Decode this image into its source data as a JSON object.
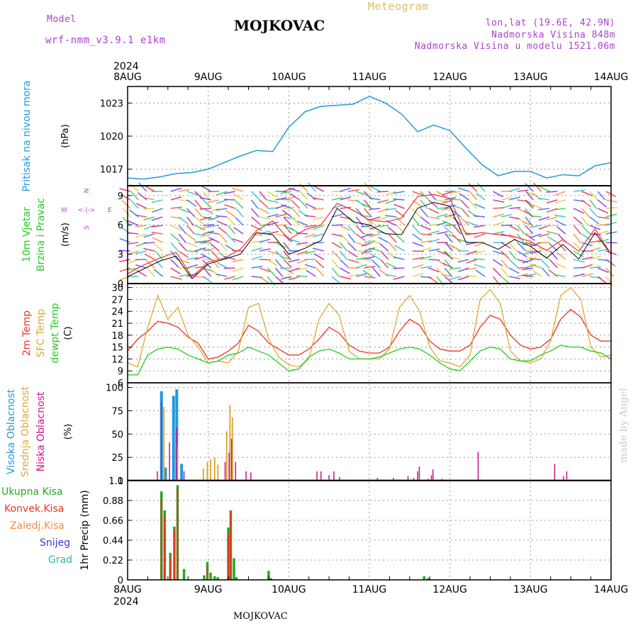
{
  "header": {
    "model_label": "Model",
    "model_name": "wrf-nmm_v3.9.1 e1km",
    "title": "MOJKOVAC",
    "subtitle": "Meteogram",
    "lonlat": "lon,lat (19.6E, 42.9N)",
    "elevation": "Nadmorska Visina 848m",
    "model_elevation": "Nadmorska Visina u modelu 1521.06m",
    "year_top": "2024",
    "year_bottom": "2024",
    "footer": "MOJKOVAC",
    "credit": "made by Angel"
  },
  "colors": {
    "pressure": "#1e9be0",
    "wind_label": "#22cc22",
    "temp_2m": "#ee3322",
    "temp_sfc": "#ddaa33",
    "temp_dew": "#22cc22",
    "cloud_high": "#1e9be0",
    "cloud_mid": "#ddaa33",
    "cloud_low": "#cc1188",
    "precip_total": "#22aa22",
    "precip_conv": "#ee3322",
    "precip_frz": "#ff8833",
    "precip_snow": "#4433cc",
    "precip_graupel": "#22bbaa",
    "compass": "#aa44cc",
    "credit": "#cccccc"
  },
  "chart_data": [
    {
      "type": "line",
      "id": "pressure",
      "ylabel": "Pritisak na nivou mora",
      "unit": "(hPa)",
      "ylim": [
        1015.5,
        1024.5
      ],
      "yticks": [
        1017,
        1020,
        1023
      ],
      "x_days": [
        "8AUG",
        "9AUG",
        "10AUG",
        "11AUG",
        "12AUG",
        "13AUG",
        "14AUG"
      ],
      "series": [
        {
          "x": [
            0,
            0.2,
            0.4,
            0.6,
            0.8,
            1.0,
            1.2,
            1.4,
            1.6,
            1.8,
            2.0,
            2.2,
            2.4,
            2.6,
            2.8,
            3.0,
            3.2,
            3.4,
            3.6,
            3.8,
            4.0,
            4.2,
            4.4,
            4.6,
            4.8,
            5.0,
            5.2,
            5.4,
            5.6,
            5.8,
            6.0
          ],
          "y": [
            1016.2,
            1016.1,
            1016.3,
            1016.6,
            1016.7,
            1017.0,
            1017.6,
            1018.2,
            1018.7,
            1018.6,
            1020.8,
            1022.2,
            1022.7,
            1022.8,
            1022.9,
            1023.6,
            1023.0,
            1022.0,
            1020.4,
            1021.0,
            1020.5,
            1018.9,
            1017.4,
            1016.4,
            1016.8,
            1016.8,
            1016.2,
            1016.5,
            1016.4,
            1017.3,
            1017.6
          ]
        }
      ]
    },
    {
      "type": "line",
      "id": "wind",
      "ylabel": [
        "10m Vjetar",
        "Brzina i Pravac"
      ],
      "unit": "(m/s)",
      "ylim": [
        0,
        10
      ],
      "yticks": [
        0,
        3,
        6,
        9
      ],
      "compass": {
        "n": "N",
        "s": "S",
        "w": "W",
        "e": "E",
        "arrows": "<-|->"
      },
      "series": [
        {
          "name": "",
          "x": [
            0,
            0.2,
            0.4,
            0.6,
            0.8,
            1.0,
            1.2,
            1.4,
            1.6,
            1.8,
            2.0,
            2.2,
            2.4,
            2.6,
            2.8,
            3.0,
            3.2,
            3.4,
            3.6,
            3.8,
            4.0,
            4.2,
            4.4,
            4.6,
            4.8,
            5.0,
            5.2,
            5.4,
            5.6,
            5.8,
            6.0
          ],
          "y": [
            0.7,
            1.5,
            2.3,
            2.8,
            0.5,
            2.0,
            2.5,
            3.0,
            5.2,
            5.0,
            3.0,
            3.6,
            4.4,
            7.7,
            6.3,
            6.0,
            5.1,
            5.0,
            7.7,
            8.3,
            7.9,
            4.2,
            4.2,
            3.5,
            4.5,
            3.8,
            2.6,
            4.0,
            2.5,
            5.2,
            3.0
          ]
        },
        {
          "name": "",
          "x": [
            0,
            0.2,
            0.4,
            0.6,
            0.8,
            1.0,
            1.2,
            1.4,
            1.6,
            1.8,
            2.0,
            2.2,
            2.4,
            2.6,
            2.8,
            3.0,
            3.2,
            3.4,
            3.6,
            3.8,
            4.0,
            4.2,
            4.4,
            4.6,
            4.8,
            5.0,
            5.2,
            5.4,
            5.6,
            5.8,
            6.0
          ],
          "y": [
            1.0,
            1.9,
            2.6,
            3.2,
            0.7,
            2.2,
            2.6,
            3.5,
            5.4,
            6.4,
            4.5,
            5.5,
            6.0,
            8.2,
            7.5,
            6.5,
            6.3,
            6.7,
            8.9,
            9.1,
            8.7,
            5.0,
            5.2,
            5.0,
            4.8,
            4.3,
            3.4,
            4.5,
            3.3,
            5.6,
            3.0
          ]
        }
      ]
    },
    {
      "type": "line",
      "id": "temperature",
      "ylabel": [
        "2m Temp",
        "SFC Temp",
        "dewpt Temp"
      ],
      "unit": "(C)",
      "ylim": [
        6,
        31
      ],
      "yticks": [
        6,
        9,
        12,
        15,
        18,
        21,
        24,
        27,
        30
      ],
      "series": [
        {
          "name": "2m Temp",
          "x": [
            0,
            0.125,
            0.25,
            0.375,
            0.5,
            0.625,
            0.75,
            0.875,
            1.0,
            1.125,
            1.25,
            1.375,
            1.5,
            1.625,
            1.75,
            1.875,
            2.0,
            2.125,
            2.25,
            2.375,
            2.5,
            2.625,
            2.75,
            2.875,
            3.0,
            3.125,
            3.25,
            3.375,
            3.5,
            3.625,
            3.75,
            3.875,
            4.0,
            4.125,
            4.25,
            4.375,
            4.5,
            4.625,
            4.75,
            4.875,
            5.0,
            5.125,
            5.25,
            5.375,
            5.5,
            5.625,
            5.75,
            5.875,
            6.0
          ],
          "y": [
            14,
            17,
            19,
            21.5,
            21,
            20,
            17.5,
            16,
            12,
            12.5,
            14,
            16,
            20.5,
            19,
            16,
            14.5,
            13,
            13,
            14.5,
            17,
            20,
            18.5,
            15.5,
            14,
            13.5,
            13.5,
            15,
            19,
            22,
            20.5,
            16.5,
            14.5,
            14,
            14,
            15.5,
            20,
            23,
            22,
            18,
            15.5,
            14.5,
            15,
            17,
            22,
            24.5,
            22.5,
            18,
            16.5,
            16.5
          ]
        },
        {
          "name": "SFC Temp",
          "x": [
            0,
            0.125,
            0.25,
            0.375,
            0.5,
            0.625,
            0.75,
            0.875,
            1.0,
            1.125,
            1.25,
            1.375,
            1.5,
            1.625,
            1.75,
            1.875,
            2.0,
            2.125,
            2.25,
            2.375,
            2.5,
            2.625,
            2.75,
            2.875,
            3.0,
            3.125,
            3.25,
            3.375,
            3.5,
            3.625,
            3.75,
            3.875,
            4.0,
            4.125,
            4.25,
            4.375,
            4.5,
            4.625,
            4.75,
            4.875,
            5.0,
            5.125,
            5.25,
            5.375,
            5.5,
            5.625,
            5.75,
            5.875,
            6.0
          ],
          "y": [
            11,
            10,
            20,
            28,
            22,
            25,
            18,
            15,
            11,
            11.5,
            11,
            14,
            25,
            26,
            17,
            12.5,
            10.5,
            10,
            12,
            22,
            26,
            23,
            14,
            12,
            12,
            12,
            14.5,
            25,
            28,
            24,
            15,
            11.5,
            11,
            10,
            13,
            27,
            29.5,
            26,
            14,
            11.5,
            11,
            12,
            16.5,
            28,
            30,
            27,
            15,
            12.5,
            13
          ]
        },
        {
          "name": "dewpt Temp",
          "x": [
            0,
            0.125,
            0.25,
            0.375,
            0.5,
            0.625,
            0.75,
            0.875,
            1.0,
            1.125,
            1.25,
            1.375,
            1.5,
            1.625,
            1.75,
            1.875,
            2.0,
            2.125,
            2.25,
            2.375,
            2.5,
            2.625,
            2.75,
            2.875,
            3.0,
            3.125,
            3.25,
            3.375,
            3.5,
            3.625,
            3.75,
            3.875,
            4.0,
            4.125,
            4.25,
            4.375,
            4.5,
            4.625,
            4.75,
            4.875,
            5.0,
            5.125,
            5.25,
            5.375,
            5.5,
            5.625,
            5.75,
            5.875,
            6.0
          ],
          "y": [
            8,
            8,
            13,
            14.5,
            15,
            14.5,
            13,
            12,
            11,
            11.5,
            13,
            13.5,
            15,
            14,
            13,
            11,
            9,
            9.5,
            12.5,
            14,
            14.5,
            13.5,
            12,
            12,
            12,
            12.5,
            13.5,
            14.5,
            15,
            14.5,
            13,
            11,
            9.5,
            9,
            11.5,
            14,
            15,
            14.5,
            12,
            11.5,
            11.5,
            13,
            14,
            15.5,
            15,
            15,
            14,
            13.5,
            12
          ]
        }
      ]
    },
    {
      "type": "bar",
      "id": "clouds",
      "ylabel": [
        "Visoka Oblacnost",
        "Srednja Oblacnost",
        "Niska Oblacnost"
      ],
      "unit": "(%)",
      "ylim": [
        0,
        105
      ],
      "yticks": [
        0,
        25,
        50,
        75,
        100
      ],
      "series": [
        {
          "name": "Visoka Oblacnost",
          "x": [
            0.42,
            0.47,
            0.57,
            0.61,
            0.67
          ],
          "values": [
            96,
            14,
            91,
            98,
            18
          ]
        },
        {
          "name": "Srednja Oblacnost",
          "x": [
            0.45,
            0.62,
            0.94,
            0.99,
            1.03,
            1.08,
            1.12,
            1.23,
            1.27,
            1.3
          ],
          "values": [
            79,
            37,
            13,
            20,
            23,
            25,
            17,
            53,
            81,
            68
          ]
        },
        {
          "name": "Niska Oblacnost",
          "x": [
            0.37,
            0.42,
            0.52,
            0.61,
            0.7,
            1.21,
            1.26,
            1.29,
            1.34,
            1.47,
            1.53,
            2.35,
            2.4,
            2.5,
            2.56,
            2.63,
            3.1,
            3.3,
            3.48,
            3.55,
            3.6,
            3.62,
            3.73,
            3.77,
            3.79,
            3.9,
            4.35,
            5.3,
            5.41,
            5.45
          ],
          "values": [
            10,
            84,
            41,
            57,
            10,
            20,
            30,
            45,
            20,
            10,
            9,
            10,
            10,
            6,
            10,
            4,
            3,
            3,
            5,
            3,
            10,
            15,
            2,
            6,
            12,
            2,
            31,
            18,
            5,
            10
          ]
        }
      ]
    },
    {
      "type": "bar",
      "id": "precip",
      "ylabel": "1hr Precip",
      "unit": "(mm)",
      "ylim": [
        0,
        1.1
      ],
      "yticks": [
        0,
        0.22,
        0.44,
        0.66,
        0.88,
        1.1
      ],
      "legend": [
        "Ukupna Kisa",
        "Konvek.Kisa",
        "Zaledj.Kisa",
        "Snijeg",
        "Grad"
      ],
      "series": [
        {
          "name": "Ukupna Kisa",
          "x": [
            0.42,
            0.46,
            0.53,
            0.58,
            0.62,
            0.7,
            0.95,
            0.99,
            1.03,
            1.08,
            1.12,
            1.25,
            1.28,
            1.32,
            1.35,
            1.75,
            1.78,
            3.68,
            3.73
          ],
          "values": [
            0.98,
            0.77,
            0.3,
            0.59,
            1.05,
            0.12,
            0.05,
            0.2,
            0.08,
            0.04,
            0.03,
            0.58,
            0.77,
            0.24,
            0.03,
            0.1,
            0.02,
            0.04,
            0.02
          ]
        },
        {
          "name": "Konvek.Kisa",
          "x": [
            0.42,
            0.46,
            0.53,
            0.58,
            0.62,
            0.99,
            1.25,
            1.28
          ],
          "values": [
            0.9,
            0.7,
            0.26,
            0.55,
            1.02,
            0.14,
            0.52,
            0.76
          ]
        }
      ]
    }
  ]
}
